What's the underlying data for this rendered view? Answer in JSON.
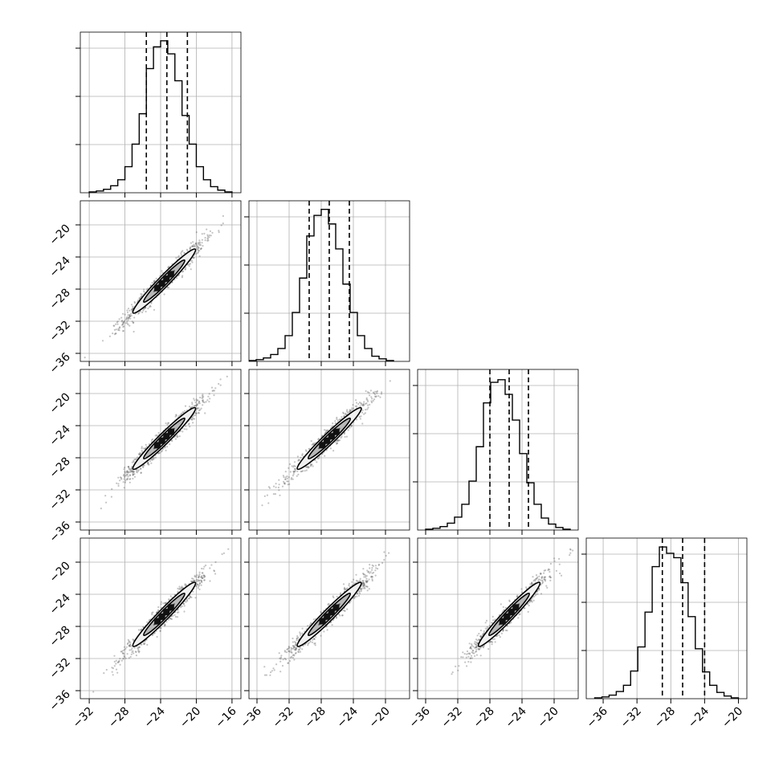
{
  "chart_data": {
    "type": "corner",
    "n_params": 4,
    "grid": true,
    "histograms": [
      {
        "param": 0,
        "xlim": [
          -33,
          -15
        ],
        "bin_start": -32,
        "bin_width": 0.8,
        "counts": [
          1,
          2,
          4,
          8,
          15,
          30,
          56,
          91,
          143,
          168,
          175,
          160,
          129,
          89,
          56,
          30,
          15,
          7,
          3,
          1
        ],
        "quantiles": [
          -25.6,
          -23.3,
          -21.0
        ],
        "ylim": [
          0,
          185
        ]
      },
      {
        "param": 1,
        "xlim": [
          -37,
          -17
        ],
        "bin_start": -37,
        "bin_width": 0.9,
        "counts": [
          1,
          2,
          4,
          8,
          15,
          30,
          57,
          97,
          146,
          170,
          177,
          160,
          131,
          90,
          57,
          30,
          15,
          6,
          3,
          1
        ],
        "quantiles": [
          -29.5,
          -27.0,
          -24.5
        ],
        "ylim": [
          0,
          187
        ]
      },
      {
        "param": 2,
        "xlim": [
          -37,
          -17
        ],
        "bin_start": -36,
        "bin_width": 0.9,
        "counts": [
          1,
          2,
          4,
          8,
          15,
          30,
          57,
          97,
          148,
          172,
          175,
          158,
          128,
          89,
          55,
          30,
          14,
          7,
          3,
          1
        ],
        "quantiles": [
          -28.0,
          -25.6,
          -23.2
        ],
        "ylim": [
          0,
          187
        ]
      },
      {
        "param": 3,
        "xlim": [
          -38,
          -19
        ],
        "bin_start": -37,
        "bin_width": 0.85,
        "counts": [
          1,
          2,
          4,
          8,
          15,
          31,
          58,
          97,
          148,
          170,
          163,
          158,
          130,
          92,
          56,
          30,
          15,
          7,
          3,
          1
        ],
        "quantiles": [
          -29.0,
          -26.6,
          -24.0
        ],
        "ylim": [
          0,
          180
        ]
      }
    ],
    "scatter_panels": [
      {
        "row": 1,
        "col": 0,
        "x_mean": -23.6,
        "y_mean": -27.0,
        "x_sigma": 2.2,
        "y_sigma": 2.5,
        "corr": 0.97,
        "xlim": [
          -33,
          -15
        ],
        "ylim": [
          -37,
          -17
        ]
      },
      {
        "row": 2,
        "col": 0,
        "x_mean": -23.6,
        "y_mean": -25.6,
        "x_sigma": 2.2,
        "y_sigma": 2.4,
        "corr": 0.97,
        "xlim": [
          -33,
          -15
        ],
        "ylim": [
          -37,
          -17
        ]
      },
      {
        "row": 2,
        "col": 1,
        "x_mean": -27.0,
        "y_mean": -25.6,
        "x_sigma": 2.5,
        "y_sigma": 2.4,
        "corr": 0.97,
        "xlim": [
          -37,
          -17
        ],
        "ylim": [
          -37,
          -17
        ]
      },
      {
        "row": 3,
        "col": 0,
        "x_mean": -23.6,
        "y_mean": -26.5,
        "x_sigma": 2.2,
        "y_sigma": 2.5,
        "corr": 0.97,
        "xlim": [
          -33,
          -15
        ],
        "ylim": [
          -37,
          -17
        ]
      },
      {
        "row": 3,
        "col": 1,
        "x_mean": -27.0,
        "y_mean": -26.5,
        "x_sigma": 2.5,
        "y_sigma": 2.5,
        "corr": 0.97,
        "xlim": [
          -37,
          -17
        ],
        "ylim": [
          -37,
          -17
        ]
      },
      {
        "row": 3,
        "col": 2,
        "x_mean": -25.6,
        "y_mean": -26.5,
        "x_sigma": 2.4,
        "y_sigma": 2.5,
        "corr": 0.97,
        "xlim": [
          -37,
          -17
        ],
        "ylim": [
          -37,
          -17
        ]
      }
    ],
    "x_ticks": [
      [
        "−32",
        "−28",
        "−24",
        "−20",
        "−16"
      ],
      [
        "−36",
        "−32",
        "−28",
        "−24",
        "−20"
      ],
      [
        "−36",
        "−32",
        "−28",
        "−24",
        "−20"
      ],
      [
        "−36",
        "−32",
        "−28",
        "−24",
        "−20"
      ]
    ],
    "x_tick_values": [
      [
        -32,
        -28,
        -24,
        -20,
        -16
      ],
      [
        -36,
        -32,
        -28,
        -24,
        -20
      ],
      [
        -36,
        -32,
        -28,
        -24,
        -20
      ],
      [
        -36,
        -32,
        -28,
        -24,
        -20
      ]
    ],
    "y_ticks": [
      "−20",
      "−24",
      "−28",
      "−32",
      "−36"
    ],
    "y_tick_values": [
      -20,
      -24,
      -28,
      -32,
      -36
    ]
  }
}
